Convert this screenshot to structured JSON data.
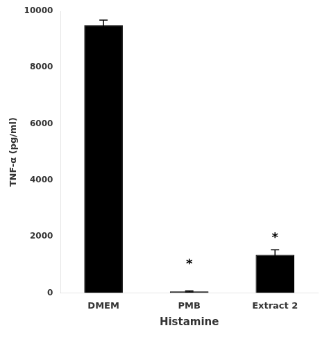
{
  "chart_data": {
    "type": "bar",
    "categories": [
      "DMEM",
      "PMB",
      "Extract 2"
    ],
    "values": [
      9500,
      50,
      1350
    ],
    "errors": [
      180,
      20,
      180
    ],
    "color": "#000000",
    "ylabel": "TNF-α (pg/ml)",
    "xlabel": "Histamine",
    "ylim": [
      0,
      10000
    ],
    "yticks": [
      0,
      2000,
      4000,
      6000,
      8000,
      10000
    ],
    "annotations": [
      {
        "text": "*",
        "x": "PMB",
        "y": 800
      },
      {
        "text": "*",
        "x": "Extract 2",
        "y": 1720
      }
    ],
    "grid": false
  }
}
